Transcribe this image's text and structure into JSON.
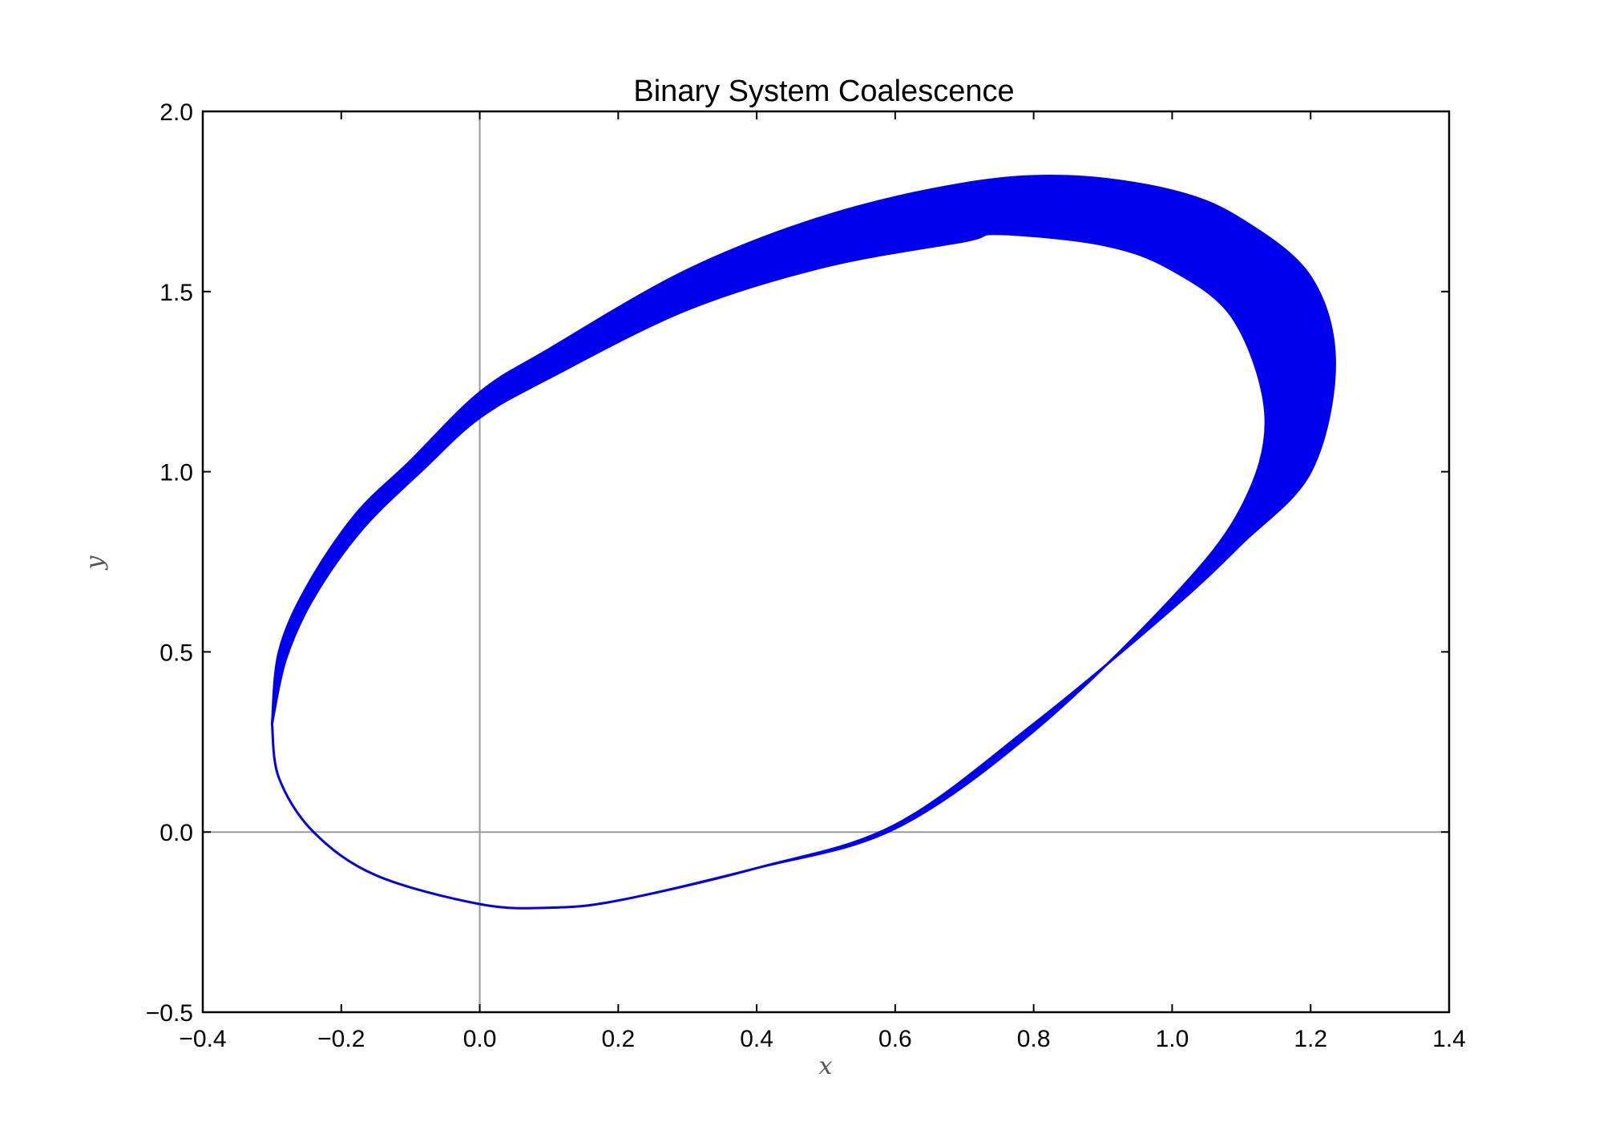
{
  "chart_data": {
    "type": "line",
    "title": "Binary System Coalescence",
    "xlabel": "x",
    "ylabel": "y",
    "xlim": [
      -0.4,
      1.4
    ],
    "ylim": [
      -0.5,
      2.0
    ],
    "xticks": [
      -0.4,
      -0.2,
      0.0,
      0.2,
      0.4,
      0.6,
      0.8,
      1.0,
      1.2,
      1.4
    ],
    "yticks": [
      -0.5,
      0.0,
      0.5,
      1.0,
      1.5,
      2.0
    ],
    "xtick_labels": [
      "−0.4",
      "−0.2",
      "0.0",
      "0.2",
      "0.4",
      "0.6",
      "0.8",
      "1.0",
      "1.2",
      "1.4"
    ],
    "ytick_labels": [
      "−0.5",
      "0.0",
      "0.5",
      "1.0",
      "1.5",
      "2.0"
    ],
    "reference_lines": {
      "x": 0.0,
      "y": 0.0
    },
    "grid": false,
    "line_color": "#0000ee",
    "reference_line_color": "#999999",
    "orbit": {
      "description_points": "orbit traced many times; inner and outer envelope of the filled band",
      "outer": [
        [
          -0.3,
          0.3
        ],
        [
          -0.29,
          0.5
        ],
        [
          -0.25,
          0.68
        ],
        [
          -0.18,
          0.88
        ],
        [
          -0.1,
          1.03
        ],
        [
          0.0,
          1.22
        ],
        [
          0.1,
          1.34
        ],
        [
          0.3,
          1.56
        ],
        [
          0.5,
          1.71
        ],
        [
          0.7,
          1.8
        ],
        [
          0.85,
          1.82
        ],
        [
          1.0,
          1.78
        ],
        [
          1.1,
          1.7
        ],
        [
          1.2,
          1.54
        ],
        [
          1.235,
          1.3
        ],
        [
          1.2,
          1.0
        ],
        [
          1.1,
          0.8
        ],
        [
          1.0,
          0.62
        ],
        [
          0.8,
          0.3
        ],
        [
          0.6,
          0.02
        ],
        [
          0.4,
          -0.1
        ],
        [
          0.2,
          -0.19
        ],
        [
          0.1,
          -0.21
        ],
        [
          0.0,
          -0.2
        ],
        [
          -0.15,
          -0.12
        ],
        [
          -0.24,
          0.0
        ],
        [
          -0.29,
          0.15
        ],
        [
          -0.3,
          0.3
        ]
      ],
      "inner": [
        [
          -0.3,
          0.3
        ],
        [
          -0.28,
          0.48
        ],
        [
          -0.24,
          0.65
        ],
        [
          -0.17,
          0.84
        ],
        [
          -0.08,
          1.01
        ],
        [
          0.0,
          1.15
        ],
        [
          0.1,
          1.26
        ],
        [
          0.3,
          1.45
        ],
        [
          0.5,
          1.57
        ],
        [
          0.7,
          1.64
        ],
        [
          0.75,
          1.66
        ],
        [
          0.9,
          1.63
        ],
        [
          1.0,
          1.56
        ],
        [
          1.09,
          1.42
        ],
        [
          1.135,
          1.15
        ],
        [
          1.1,
          0.9
        ],
        [
          1.0,
          0.65
        ],
        [
          0.8,
          0.28
        ],
        [
          0.6,
          0.01
        ],
        [
          0.4,
          -0.1
        ],
        [
          0.2,
          -0.19
        ],
        [
          0.1,
          -0.21
        ],
        [
          0.0,
          -0.2
        ],
        [
          -0.15,
          -0.12
        ],
        [
          -0.24,
          0.0
        ],
        [
          -0.29,
          0.15
        ],
        [
          -0.3,
          0.3
        ]
      ]
    }
  }
}
